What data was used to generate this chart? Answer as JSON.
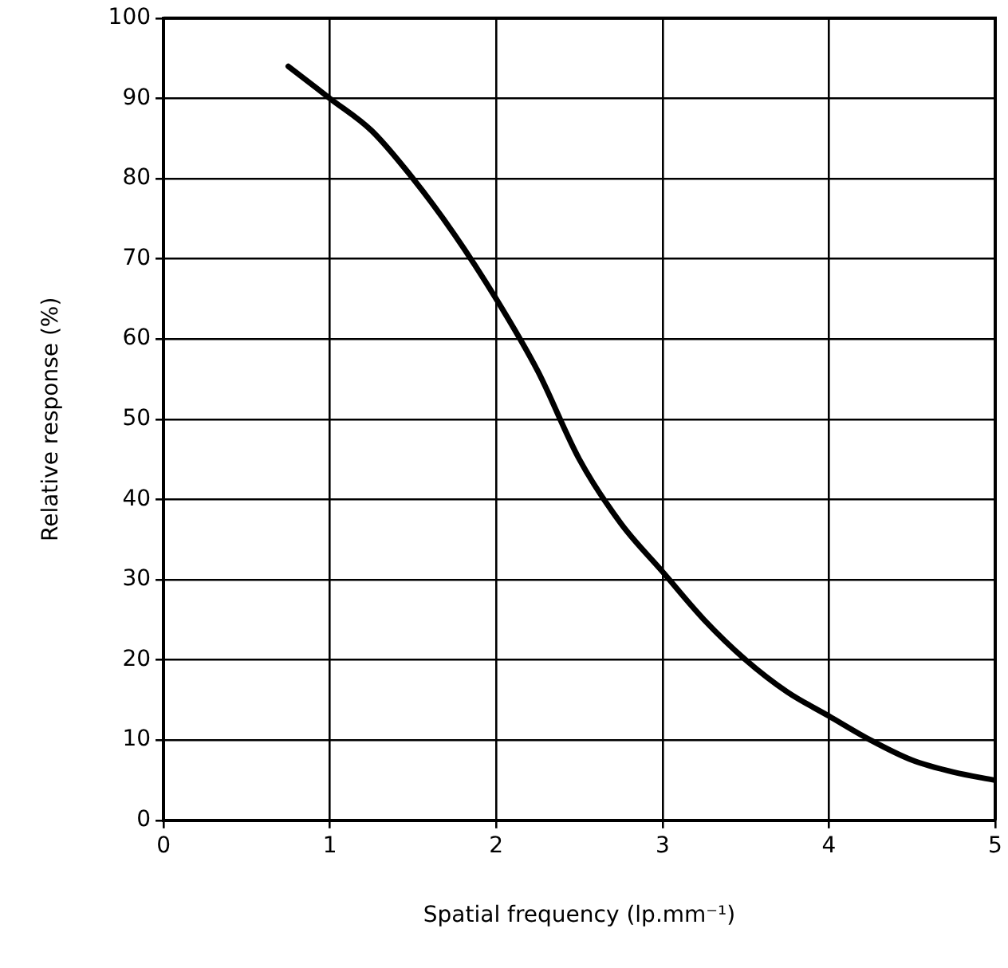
{
  "chart_data": {
    "type": "line",
    "xlabel": "Spatial frequency (lp.mm⁻¹)",
    "ylabel": "Relative response (%)",
    "xlim": [
      0,
      5
    ],
    "xticks": [
      0,
      1,
      2,
      3,
      4,
      5
    ],
    "ylim": [
      0,
      100
    ],
    "yticks": [
      0,
      10,
      20,
      30,
      40,
      50,
      60,
      70,
      80,
      90,
      100
    ],
    "grid": true,
    "series": [
      {
        "color": "#000000",
        "x": [
          0.75,
          1,
          1.25,
          1.5,
          1.75,
          2,
          2.25,
          2.5,
          2.75,
          3,
          3.25,
          3.5,
          3.75,
          4,
          4.25,
          4.5,
          4.75,
          5
        ],
        "values": [
          94,
          90,
          86,
          80,
          73,
          65,
          56,
          45,
          37,
          31,
          25,
          20,
          16,
          13,
          10,
          7.5,
          6,
          5
        ]
      }
    ],
    "marker": "none",
    "line_style": "solid"
  }
}
